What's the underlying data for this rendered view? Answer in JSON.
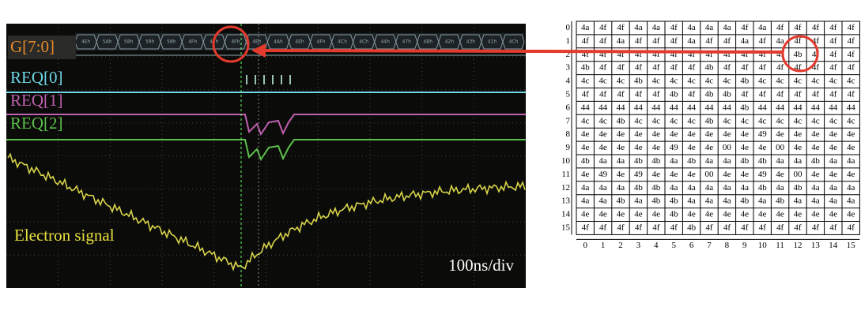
{
  "scope": {
    "bus_label": "G[7:0]",
    "signals": [
      "REQ[0]",
      "REQ[1]",
      "REQ[2]"
    ],
    "trace_label": "Electron signal",
    "timebase": "100ns/div",
    "bus_values": [
      "4Eh",
      "5Ah",
      "58h",
      "59h",
      "58h",
      "4Fh",
      "4Fh",
      "4Fh",
      "4Eh",
      "4Ah",
      "4Eh",
      "4Fh",
      "4Ch",
      "4Ch",
      "44h",
      "47h",
      "4Bh",
      "42h",
      "43h",
      "41h",
      "4Ch"
    ]
  },
  "table": {
    "row_headers": [
      "0",
      "1",
      "2",
      "3",
      "4",
      "5",
      "6",
      "7",
      "8",
      "9",
      "10",
      "11",
      "12",
      "13",
      "14",
      "15"
    ],
    "col_headers": [
      "0",
      "1",
      "2",
      "3",
      "4",
      "5",
      "6",
      "7",
      "8",
      "9",
      "10",
      "11",
      "12",
      "13",
      "14",
      "15"
    ],
    "rows": [
      [
        "4a",
        "4f",
        "4f",
        "4a",
        "4a",
        "4f",
        "4a",
        "4a",
        "4a",
        "4f",
        "4a",
        "4f",
        "4f",
        "4f",
        "4f",
        "4f"
      ],
      [
        "4f",
        "4f",
        "4a",
        "4f",
        "4f",
        "4f",
        "4a",
        "4f",
        "4f",
        "4a",
        "4f",
        "4a",
        "4f",
        "4f",
        "4f",
        "4f"
      ],
      [
        "4f",
        "4f",
        "4f",
        "4f",
        "4f",
        "4f",
        "4f",
        "4f",
        "4f",
        "4f",
        "4f",
        "4f",
        "4b",
        "4f",
        "4f",
        "4f"
      ],
      [
        "4b",
        "4f",
        "4f",
        "4f",
        "4f",
        "4f",
        "4f",
        "4b",
        "4f",
        "4f",
        "4f",
        "4f",
        "4f",
        "4f",
        "4f",
        "4f"
      ],
      [
        "4c",
        "4c",
        "4c",
        "4b",
        "4c",
        "4c",
        "4c",
        "4c",
        "4c",
        "4b",
        "4c",
        "4c",
        "4c",
        "4c",
        "4c",
        "4c"
      ],
      [
        "4f",
        "4f",
        "4f",
        "4f",
        "4f",
        "4b",
        "4f",
        "4b",
        "4b",
        "4f",
        "4f",
        "4f",
        "4f",
        "4f",
        "4f",
        "4f"
      ],
      [
        "44",
        "44",
        "44",
        "44",
        "44",
        "44",
        "44",
        "44",
        "44",
        "4b",
        "44",
        "44",
        "44",
        "44",
        "44",
        "44"
      ],
      [
        "4c",
        "4c",
        "4b",
        "4c",
        "4c",
        "4c",
        "4c",
        "4b",
        "4c",
        "4c",
        "4c",
        "4c",
        "4c",
        "4c",
        "4c",
        "4c"
      ],
      [
        "4e",
        "4e",
        "4e",
        "4e",
        "4e",
        "4e",
        "4e",
        "4e",
        "4e",
        "4e",
        "49",
        "4e",
        "4e",
        "4e",
        "4e",
        "4e"
      ],
      [
        "4e",
        "4e",
        "4e",
        "4e",
        "4e",
        "49",
        "4e",
        "4e",
        "00",
        "4e",
        "4e",
        "00",
        "4e",
        "4e",
        "4e",
        "4e"
      ],
      [
        "4b",
        "4a",
        "4a",
        "4b",
        "4b",
        "4a",
        "4b",
        "4a",
        "4a",
        "4b",
        "4b",
        "4a",
        "4a",
        "4b",
        "4a",
        "4a"
      ],
      [
        "4e",
        "49",
        "4e",
        "49",
        "4e",
        "4e",
        "4e",
        "00",
        "4e",
        "4e",
        "49",
        "4e",
        "00",
        "4e",
        "4e",
        "4e"
      ],
      [
        "4a",
        "4a",
        "4a",
        "4b",
        "4b",
        "4a",
        "4a",
        "4a",
        "4a",
        "4a",
        "4b",
        "4a",
        "4b",
        "4a",
        "4a",
        "4a"
      ],
      [
        "4a",
        "4a",
        "4b",
        "4a",
        "4b",
        "4b",
        "4a",
        "4a",
        "4a",
        "4b",
        "4a",
        "4b",
        "4a",
        "4a",
        "4a",
        "4a"
      ],
      [
        "4e",
        "4e",
        "4e",
        "4e",
        "4e",
        "4b",
        "4e",
        "4e",
        "4e",
        "4e",
        "4e",
        "4e",
        "4e",
        "4e",
        "4e",
        "4e"
      ],
      [
        "4f",
        "4f",
        "4f",
        "4f",
        "4f",
        "4f",
        "4b",
        "4f",
        "4f",
        "4f",
        "4f",
        "4f",
        "4f",
        "4f",
        "4f",
        "4f"
      ]
    ]
  }
}
